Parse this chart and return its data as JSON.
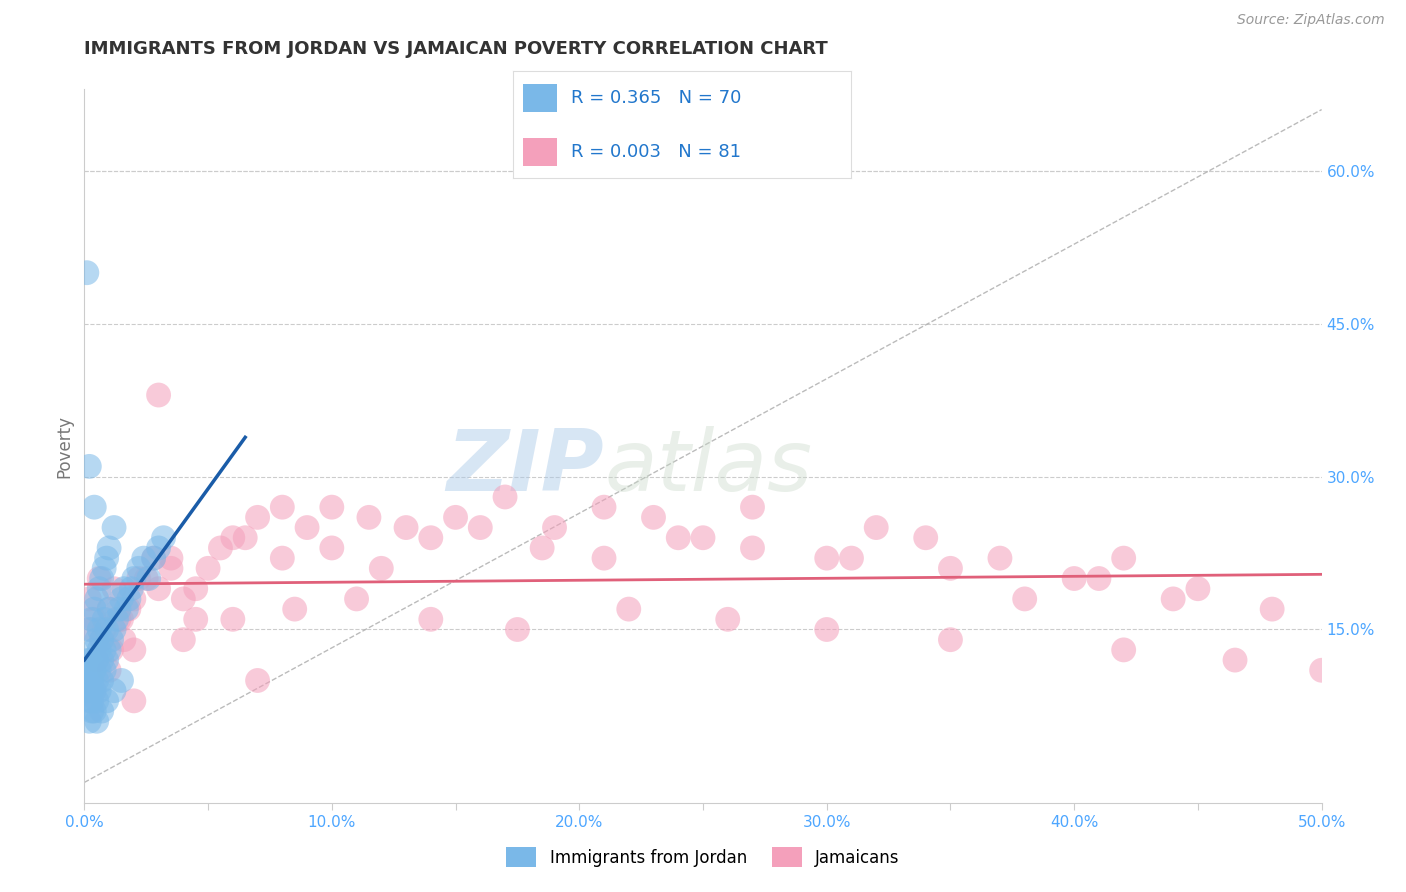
{
  "title": "IMMIGRANTS FROM JORDAN VS JAMAICAN POVERTY CORRELATION CHART",
  "source_text": "Source: ZipAtlas.com",
  "ylabel": "Poverty",
  "xlim": [
    0,
    0.5
  ],
  "ylim": [
    -0.02,
    0.68
  ],
  "xtick_labels": [
    "0.0%",
    "",
    "10.0%",
    "",
    "20.0%",
    "",
    "30.0%",
    "",
    "40.0%",
    "",
    "50.0%"
  ],
  "xtick_vals": [
    0,
    0.05,
    0.1,
    0.15,
    0.2,
    0.25,
    0.3,
    0.35,
    0.4,
    0.45,
    0.5
  ],
  "ytick_labels": [
    "15.0%",
    "30.0%",
    "45.0%",
    "60.0%"
  ],
  "ytick_vals": [
    0.15,
    0.3,
    0.45,
    0.6
  ],
  "jordan_color": "#7ab8e8",
  "jamaica_color": "#f4a0bb",
  "jordan_R": 0.365,
  "jordan_N": 70,
  "jamaica_R": 0.003,
  "jamaica_N": 81,
  "jordan_line_color": "#1a5ca8",
  "jamaica_line_color": "#e0607a",
  "diag_line_color": "#aaaaaa",
  "background_color": "#ffffff",
  "grid_color": "#cccccc",
  "watermark_zip": "ZIP",
  "watermark_atlas": "atlas",
  "legend_label_jordan": "Immigrants from Jordan",
  "legend_label_jamaica": "Jamaicans",
  "title_color": "#333333",
  "axis_label_color": "#555555",
  "tick_label_color_blue": "#4da6ff",
  "jordan_points_x": [
    0.001,
    0.001,
    0.001,
    0.002,
    0.002,
    0.002,
    0.002,
    0.002,
    0.003,
    0.003,
    0.003,
    0.003,
    0.004,
    0.004,
    0.004,
    0.004,
    0.005,
    0.005,
    0.005,
    0.005,
    0.006,
    0.006,
    0.006,
    0.006,
    0.007,
    0.007,
    0.007,
    0.008,
    0.008,
    0.008,
    0.009,
    0.009,
    0.01,
    0.01,
    0.011,
    0.012,
    0.013,
    0.014,
    0.015,
    0.016,
    0.017,
    0.018,
    0.019,
    0.02,
    0.022,
    0.024,
    0.026,
    0.028,
    0.03,
    0.032,
    0.002,
    0.003,
    0.004,
    0.005,
    0.006,
    0.007,
    0.008,
    0.009,
    0.01,
    0.012,
    0.002,
    0.003,
    0.005,
    0.007,
    0.009,
    0.012,
    0.015,
    0.001,
    0.002,
    0.004
  ],
  "jordan_points_y": [
    0.09,
    0.1,
    0.11,
    0.08,
    0.09,
    0.1,
    0.11,
    0.12,
    0.08,
    0.09,
    0.1,
    0.12,
    0.07,
    0.09,
    0.11,
    0.13,
    0.08,
    0.1,
    0.12,
    0.14,
    0.09,
    0.11,
    0.13,
    0.15,
    0.1,
    0.12,
    0.14,
    0.11,
    0.13,
    0.16,
    0.12,
    0.15,
    0.13,
    0.17,
    0.14,
    0.15,
    0.16,
    0.17,
    0.18,
    0.19,
    0.17,
    0.18,
    0.19,
    0.2,
    0.21,
    0.22,
    0.2,
    0.22,
    0.23,
    0.24,
    0.15,
    0.16,
    0.17,
    0.18,
    0.19,
    0.2,
    0.21,
    0.22,
    0.23,
    0.25,
    0.06,
    0.07,
    0.06,
    0.07,
    0.08,
    0.09,
    0.1,
    0.5,
    0.31,
    0.27
  ],
  "jamaica_points_x": [
    0.002,
    0.004,
    0.006,
    0.008,
    0.01,
    0.012,
    0.014,
    0.016,
    0.018,
    0.02,
    0.025,
    0.03,
    0.035,
    0.04,
    0.045,
    0.05,
    0.06,
    0.07,
    0.08,
    0.09,
    0.1,
    0.115,
    0.13,
    0.15,
    0.17,
    0.19,
    0.21,
    0.23,
    0.25,
    0.27,
    0.3,
    0.32,
    0.35,
    0.38,
    0.4,
    0.42,
    0.45,
    0.48,
    0.5,
    0.03,
    0.003,
    0.007,
    0.011,
    0.015,
    0.022,
    0.028,
    0.035,
    0.045,
    0.055,
    0.065,
    0.08,
    0.1,
    0.12,
    0.14,
    0.16,
    0.185,
    0.21,
    0.24,
    0.27,
    0.31,
    0.34,
    0.37,
    0.41,
    0.44,
    0.005,
    0.01,
    0.02,
    0.04,
    0.06,
    0.085,
    0.11,
    0.14,
    0.175,
    0.22,
    0.26,
    0.3,
    0.35,
    0.42,
    0.465,
    0.02,
    0.07
  ],
  "jamaica_points_y": [
    0.18,
    0.16,
    0.2,
    0.15,
    0.17,
    0.19,
    0.16,
    0.14,
    0.17,
    0.18,
    0.2,
    0.19,
    0.22,
    0.18,
    0.16,
    0.21,
    0.24,
    0.26,
    0.27,
    0.25,
    0.27,
    0.26,
    0.25,
    0.26,
    0.28,
    0.25,
    0.27,
    0.26,
    0.24,
    0.27,
    0.22,
    0.25,
    0.21,
    0.18,
    0.2,
    0.22,
    0.19,
    0.17,
    0.11,
    0.38,
    0.15,
    0.14,
    0.13,
    0.16,
    0.2,
    0.22,
    0.21,
    0.19,
    0.23,
    0.24,
    0.22,
    0.23,
    0.21,
    0.24,
    0.25,
    0.23,
    0.22,
    0.24,
    0.23,
    0.22,
    0.24,
    0.22,
    0.2,
    0.18,
    0.12,
    0.11,
    0.13,
    0.14,
    0.16,
    0.17,
    0.18,
    0.16,
    0.15,
    0.17,
    0.16,
    0.15,
    0.14,
    0.13,
    0.12,
    0.08,
    0.1
  ]
}
